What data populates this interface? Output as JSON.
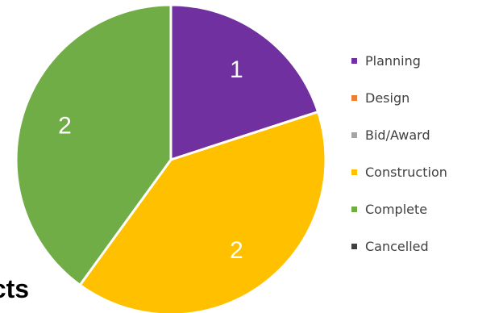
{
  "chart_data": {
    "type": "pie",
    "categories": [
      "Planning",
      "Design",
      "Bid/Award",
      "Construction",
      "Complete",
      "Cancelled"
    ],
    "values": [
      1,
      0,
      0,
      2,
      2,
      0
    ],
    "data_labels": [
      "1",
      "",
      "",
      "2",
      "2",
      ""
    ],
    "colors": [
      "#7030A0",
      "#ED7D31",
      "#A5A5A5",
      "#FFC000",
      "#70AD47",
      "#404040"
    ],
    "legend": {
      "position": "right",
      "entries": [
        "Planning",
        "Design",
        "Bid/Award",
        "Construction",
        "Complete",
        "Cancelled"
      ]
    }
  },
  "caption": {
    "text": "ects"
  }
}
